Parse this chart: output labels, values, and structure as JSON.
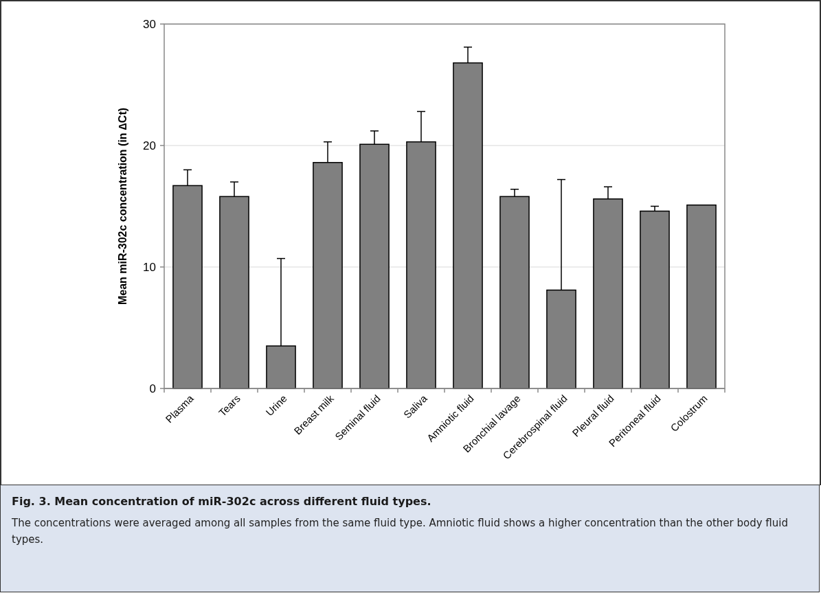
{
  "chart_data": {
    "type": "bar",
    "title": "Fig. 3. Mean concentration of miR-302c across different fluid types.",
    "subtitle": "The concentrations were averaged among all samples from the same fluid type. Amniotic fluid shows a higher concentration than the other body fluid types.",
    "ylabel": "Mean miR-302c concentration (in ∆Ct)",
    "categories": [
      "Plasma",
      "Tears",
      "Urine",
      "Breast milk",
      "Seminal fluid",
      "Saliva",
      "Amniotic fluid",
      "Bronchial lavage",
      "Cerebrospinal fluid",
      "Pleural fluid",
      "Peritoneal fluid",
      "Colostrum"
    ],
    "values": [
      16.7,
      15.8,
      3.5,
      18.6,
      20.1,
      20.3,
      26.8,
      15.8,
      8.1,
      15.6,
      14.6,
      15.1
    ],
    "errors": [
      [
        16.7,
        18.0
      ],
      [
        15.8,
        17.0
      ],
      [
        3.5,
        10.7
      ],
      [
        18.6,
        20.3
      ],
      [
        20.1,
        21.2
      ],
      [
        20.3,
        22.8
      ],
      [
        26.8,
        28.1
      ],
      [
        15.8,
        16.4
      ],
      [
        8.1,
        17.2
      ],
      [
        15.6,
        16.6
      ],
      [
        14.6,
        15.0
      ],
      null
    ],
    "color": "#808080",
    "ylim": [
      0,
      30
    ],
    "yticks": [
      0,
      10,
      20,
      30
    ],
    "grid": "y"
  }
}
